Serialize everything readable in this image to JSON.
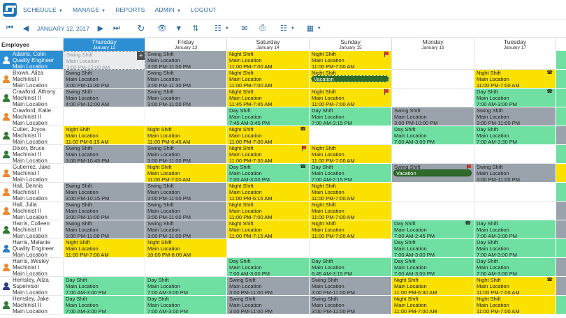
{
  "nav": {
    "items": [
      {
        "label": "SCHEDULE",
        "caret": true
      },
      {
        "label": "MANAGE",
        "caret": true
      },
      {
        "label": "REPORTS",
        "caret": false
      },
      {
        "label": "ADMIN",
        "caret": true
      },
      {
        "label": "LOGOUT",
        "caret": false
      }
    ]
  },
  "toolbar": {
    "date": "JANUARY 12, 2017"
  },
  "header": {
    "employee_label": "Employee",
    "days": [
      {
        "day": "Thursday",
        "date": "January 12",
        "today": true
      },
      {
        "day": "Friday",
        "date": "January 13",
        "today": false
      },
      {
        "day": "Saturday",
        "date": "January 14",
        "today": false
      },
      {
        "day": "Sunday",
        "date": "January 15",
        "today": false
      },
      {
        "day": "Monday",
        "date": "January 16",
        "today": false
      },
      {
        "day": "Tuesday",
        "date": "January 17",
        "today": false
      },
      {
        "day": "",
        "date": "",
        "today": false
      }
    ]
  },
  "colors": {
    "night": "#fbe100",
    "swing": "#9aa3ab",
    "day": "#6fe0a2",
    "person_blue": "#2a7fc9",
    "person_orange": "#f0882a",
    "person_green": "#2e7d32",
    "person_navy": "#2b3a8c"
  },
  "drag_ghost": {
    "l0": "Swing Shift",
    "l1": "Main Location",
    "l2": "3:00 PM-12:00 AM",
    "menu": "≡"
  },
  "rows": [
    {
      "emp": {
        "name": "Adams, Colin",
        "role": "Quality Engineer",
        "loc": "Main Location",
        "color": "blue",
        "sel": true
      },
      "cells": [
        {
          "k": "swing",
          "l0": "Swing Shift",
          "l1": "Main Location",
          "l2": "3:00 PM-12:00 AM"
        },
        {
          "k": "swing",
          "l0": "Swing Shift",
          "l1": "Main Location",
          "l2": "3:00 PM-11:00 PM"
        },
        {
          "k": "night",
          "l0": "Night Shift",
          "l1": "Main Location",
          "l2": "11:00 PM-7:00 AM"
        },
        {
          "k": "night",
          "l0": "Night Shift",
          "l1": "Main Location",
          "l2": "11:00 PM-7:00 AM",
          "flag": true
        },
        {
          "k": "empty"
        },
        {
          "k": "empty"
        },
        {
          "k": "day"
        }
      ]
    },
    {
      "emp": {
        "name": "Brown, Aliza",
        "role": "Machinist I",
        "loc": "Main Location",
        "color": "orange"
      },
      "cells": [
        {
          "k": "swing",
          "l0": "Swing Shift",
          "l1": "Main Location",
          "l2": "3:00 PM-11:30 PM"
        },
        {
          "k": "swing",
          "l0": "Swing Shift",
          "l1": "Main Location",
          "l2": "3:00 PM-11:30 PM"
        },
        {
          "k": "night",
          "l0": "Night Shift",
          "l1": "Main Location",
          "l2": "11:00 PM-7:00 AM"
        },
        {
          "k": "night",
          "l0": "Night Shift",
          "l1": "",
          "l2": "",
          "vac": "Vacation",
          "dash": true
        },
        {
          "k": "empty"
        },
        {
          "k": "night",
          "l0": "Night Shift",
          "l1": "Main Location",
          "l2": "11:00 PM-7:00 AM",
          "phone": true
        },
        {
          "k": "day"
        }
      ]
    },
    {
      "emp": {
        "name": "Crawford, Athony",
        "role": "Machinist II",
        "loc": "Main Location",
        "color": "green"
      },
      "cells": [
        {
          "k": "swing",
          "l0": "Swing Shift",
          "l1": "Main Location",
          "l2": "4:00 PM-12:00 AM"
        },
        {
          "k": "swing",
          "l0": "Swing Shift",
          "l1": "Main Location",
          "l2": "3:00 PM-11:00 PM"
        },
        {
          "k": "night",
          "l0": "Night Shift",
          "l1": "Main Location",
          "l2": "11:45 PM-7:45 AM"
        },
        {
          "k": "night",
          "l0": "Night Shift",
          "l1": "Main Location",
          "l2": "11:00 PM-7:00 AM",
          "flag": true
        },
        {
          "k": "empty"
        },
        {
          "k": "day",
          "l0": "Day Shift",
          "l1": "Main Location",
          "l2": "7:00 AM-3:00 PM",
          "phone": true
        },
        {
          "k": "day"
        }
      ]
    },
    {
      "emp": {
        "name": "Crawford, Katie",
        "role": "Machinist II",
        "loc": "Main Location",
        "color": "orange"
      },
      "cells": [
        {
          "k": "empty"
        },
        {
          "k": "empty"
        },
        {
          "k": "day",
          "l0": "Day Shift",
          "l1": "Main Location",
          "l2": "7:45 AM-3:45 PM"
        },
        {
          "k": "day",
          "l0": "Day Shift",
          "l1": "Main Location",
          "l2": "7:00 AM-3:15 PM"
        },
        {
          "k": "swing",
          "l0": "Swing Shift",
          "l1": "Main Location",
          "l2": "3:00 PM-10:00 PM"
        },
        {
          "k": "swing",
          "l0": "Swing Shift",
          "l1": "Main Location",
          "l2": "3:00 PM-11:00 PM"
        },
        {
          "k": "day"
        }
      ]
    },
    {
      "emp": {
        "name": "Cutter, Joyce",
        "role": "Machinist II",
        "loc": "Main Location",
        "color": "green"
      },
      "cells": [
        {
          "k": "night",
          "l0": "Night Shift",
          "l1": "Main Location",
          "l2": "11:00 PM-6:15 AM"
        },
        {
          "k": "night",
          "l0": "Night Shift",
          "l1": "Main Location",
          "l2": "11:00 PM-6:45 AM"
        },
        {
          "k": "night",
          "l0": "Night Shift",
          "l1": "Main Location",
          "l2": "11:00 PM-7:00 AM",
          "phone": true
        },
        {
          "k": "empty"
        },
        {
          "k": "day",
          "l0": "Day Shift",
          "l1": "Main Location",
          "l2": "7:00 AM-3:00 PM"
        },
        {
          "k": "day",
          "l0": "Day Shift",
          "l1": "Main Location",
          "l2": "7:00 AM-3:30 PM"
        },
        {
          "k": "swing"
        }
      ]
    },
    {
      "emp": {
        "name": "Dixon, Bruce",
        "role": "Machinist II",
        "loc": "Main Location",
        "color": "green"
      },
      "cells": [
        {
          "k": "swing",
          "l0": "Swing Shift",
          "l1": "Main Location",
          "l2": "3:00 PM-10:45 PM"
        },
        {
          "k": "swing",
          "l0": "Swing Shift",
          "l1": "Main Location",
          "l2": "3:00 PM-11:00 PM"
        },
        {
          "k": "night",
          "l0": "Night Shift",
          "l1": "Main Location",
          "l2": "11:00 PM-7:30 AM",
          "flag": true
        },
        {
          "k": "night",
          "l0": "Night Shift",
          "l1": "Main Location",
          "l2": "11:00 PM-7:00 AM"
        },
        {
          "k": "empty"
        },
        {
          "k": "empty"
        },
        {
          "k": "day"
        }
      ]
    },
    {
      "emp": {
        "name": "Gutierrez, Jake",
        "role": "Machinist I",
        "loc": "Main Location",
        "color": "orange"
      },
      "cells": [
        {
          "k": "empty"
        },
        {
          "k": "night",
          "l0": "Night Shift",
          "l1": "Main Location",
          "l2": "11:00 PM-7:00 AM"
        },
        {
          "k": "day",
          "l0": "Day Shift",
          "l1": "Main Location",
          "l2": "7:00 AM-3:00 PM",
          "phone": true
        },
        {
          "k": "day",
          "l0": "Day Shift",
          "l1": "Main Location",
          "l2": "7:00 AM-2:15 PM"
        },
        {
          "k": "swing",
          "l0": "Swing Shift",
          "l1": "",
          "l2": "",
          "vac": "Vacation",
          "flag": true
        },
        {
          "k": "swing",
          "l0": "Swing Shift",
          "l1": "Main Location",
          "l2": "3:00 PM-11:00 PM"
        },
        {
          "k": "night"
        }
      ]
    },
    {
      "emp": {
        "name": "Hall, Dennis",
        "role": "Machinist I",
        "loc": "Main Location",
        "color": "orange"
      },
      "cells": [
        {
          "k": "swing",
          "l0": "Swing Shift",
          "l1": "Main Location",
          "l2": "3:00 PM-10:15 PM"
        },
        {
          "k": "swing",
          "l0": "Swing Shift",
          "l1": "Main Location",
          "l2": "3:00 PM-11:00 PM"
        },
        {
          "k": "night",
          "l0": "Night Shift",
          "l1": "Main Location",
          "l2": "11:00 PM-6:15 AM"
        },
        {
          "k": "night",
          "l0": "Night Shift",
          "l1": "Main Location",
          "l2": "11:00 PM-7:00 AM"
        },
        {
          "k": "empty"
        },
        {
          "k": "empty"
        },
        {
          "k": "day"
        }
      ]
    },
    {
      "emp": {
        "name": "Hall, Julia",
        "role": "Machinist II",
        "loc": "Main Location",
        "color": "orange"
      },
      "cells": [
        {
          "k": "swing",
          "l0": "Swing Shift",
          "l1": "Main Location",
          "l2": "3:00 PM-11:00 PM"
        },
        {
          "k": "swing",
          "l0": "Swing Shift",
          "l1": "Main Location",
          "l2": "3:00 PM-11:00 PM"
        },
        {
          "k": "night",
          "l0": "Night Shift",
          "l1": "Main Location",
          "l2": "11:00 PM-7:00 AM"
        },
        {
          "k": "night",
          "l0": "Night Shift",
          "l1": "Main Location",
          "l2": "11:00 PM-7:00 AM"
        },
        {
          "k": "empty"
        },
        {
          "k": "empty"
        },
        {
          "k": "swing"
        }
      ]
    },
    {
      "emp": {
        "name": "Harris, Colleen",
        "role": "Machinist II",
        "loc": "Main Location",
        "color": "green"
      },
      "cells": [
        {
          "k": "swing",
          "l0": "Swing Shift",
          "l1": "Main Location",
          "l2": "3:00 PM-11:00 PM"
        },
        {
          "k": "swing",
          "l0": "Swing Shift",
          "l1": "Main Location",
          "l2": "3:00 PM-11:00 PM"
        },
        {
          "k": "night",
          "l0": "Night Shift",
          "l1": "Main Location",
          "l2": "11:00 PM-7:15 AM"
        },
        {
          "k": "night",
          "l0": "Night Shift",
          "l1": "Main Location",
          "l2": "11:00 PM-7:00 AM"
        },
        {
          "k": "day",
          "l0": "Day Shift",
          "l1": "Main Location",
          "l2": "7:00 AM-2:45 PM",
          "phone": true
        },
        {
          "k": "day",
          "l0": "Day Shift",
          "l1": "Main Location",
          "l2": "7:00 AM-3:00 PM"
        },
        {
          "k": "swing"
        }
      ]
    },
    {
      "emp": {
        "name": "Harris, Melanie",
        "role": "Quality Engineer",
        "loc": "Main Location",
        "color": "blue"
      },
      "cells": [
        {
          "k": "night",
          "l0": "Night Shift",
          "l1": "Main Location",
          "l2": "11:00 PM-7:00 AM"
        },
        {
          "k": "night",
          "l0": "Night Shift",
          "l1": "Main Location",
          "l2": "10:00 PM-6:00 AM"
        },
        {
          "k": "empty"
        },
        {
          "k": "empty"
        },
        {
          "k": "day",
          "l0": "Day Shift",
          "l1": "Main Location",
          "l2": "7:00 AM-3:00 PM"
        },
        {
          "k": "day",
          "l0": "Day Shift",
          "l1": "Main Location",
          "l2": "7:00 AM-3:00 PM"
        },
        {
          "k": "day"
        }
      ]
    },
    {
      "emp": {
        "name": "Harris, Wesley",
        "role": "Machinist I",
        "loc": "Main Location",
        "color": "orange"
      },
      "cells": [
        {
          "k": "empty"
        },
        {
          "k": "empty"
        },
        {
          "k": "day",
          "l0": "Day Shift",
          "l1": "Main Location",
          "l2": "7:00 AM-3:00 PM"
        },
        {
          "k": "day",
          "l0": "Day Shift",
          "l1": "Main Location",
          "l2": "6:45 AM-3:15 PM"
        },
        {
          "k": "day",
          "l0": "Day Shift",
          "l1": "Main Location",
          "l2": "7:00 AM-3:00 PM"
        },
        {
          "k": "day",
          "l0": "Day Shift",
          "l1": "Main Location",
          "l2": "7:00 AM-3:00 PM"
        },
        {
          "k": "swing"
        }
      ]
    },
    {
      "emp": {
        "name": "Hemsley, Aliza",
        "role": "Supervisor",
        "loc": "Main Location",
        "color": "navy"
      },
      "cells": [
        {
          "k": "day",
          "l0": "Day Shift",
          "l1": "Main Location",
          "l2": "7:00 AM-3:00 PM"
        },
        {
          "k": "day",
          "l0": "Day Shift",
          "l1": "Main Location",
          "l2": "7:00 AM-3:00 PM"
        },
        {
          "k": "swing",
          "l0": "Swing Shift",
          "l1": "Main Location",
          "l2": "3:00 PM-11:00 PM"
        },
        {
          "k": "swing",
          "l0": "Swing Shift",
          "l1": "Main Location",
          "l2": "3:00 PM-11:00 PM"
        },
        {
          "k": "night",
          "l0": "Night Shift",
          "l1": "Main Location",
          "l2": "11:00 PM-6:30 AM"
        },
        {
          "k": "night",
          "l0": "Night Shift",
          "l1": "Main Location",
          "l2": "11:00 PM-7:00 AM",
          "phone": true
        },
        {
          "k": "swing"
        }
      ]
    },
    {
      "emp": {
        "name": "Hemsley, Jake",
        "role": "Machinist II",
        "loc": "Main Location",
        "color": "green"
      },
      "cells": [
        {
          "k": "day",
          "l0": "Day Shift",
          "l1": "Main Location",
          "l2": "7:00 AM-3:00 PM"
        },
        {
          "k": "day",
          "l0": "Day Shift",
          "l1": "Main Location",
          "l2": "7:00 AM-3:00 PM"
        },
        {
          "k": "swing",
          "l0": "Swing Shift",
          "l1": "Main Location",
          "l2": "3:00 PM-11:00 PM"
        },
        {
          "k": "swing",
          "l0": "Swing Shift",
          "l1": "Main Location",
          "l2": "3:00 PM-11:00 PM"
        },
        {
          "k": "night",
          "l0": "Night Shift",
          "l1": "Main Location",
          "l2": "11:00 PM-7:00 AM"
        },
        {
          "k": "night",
          "l0": "Night Shift",
          "l1": "Main Location",
          "l2": "11:00 PM-7:00 AM"
        },
        {
          "k": "day"
        }
      ]
    }
  ]
}
